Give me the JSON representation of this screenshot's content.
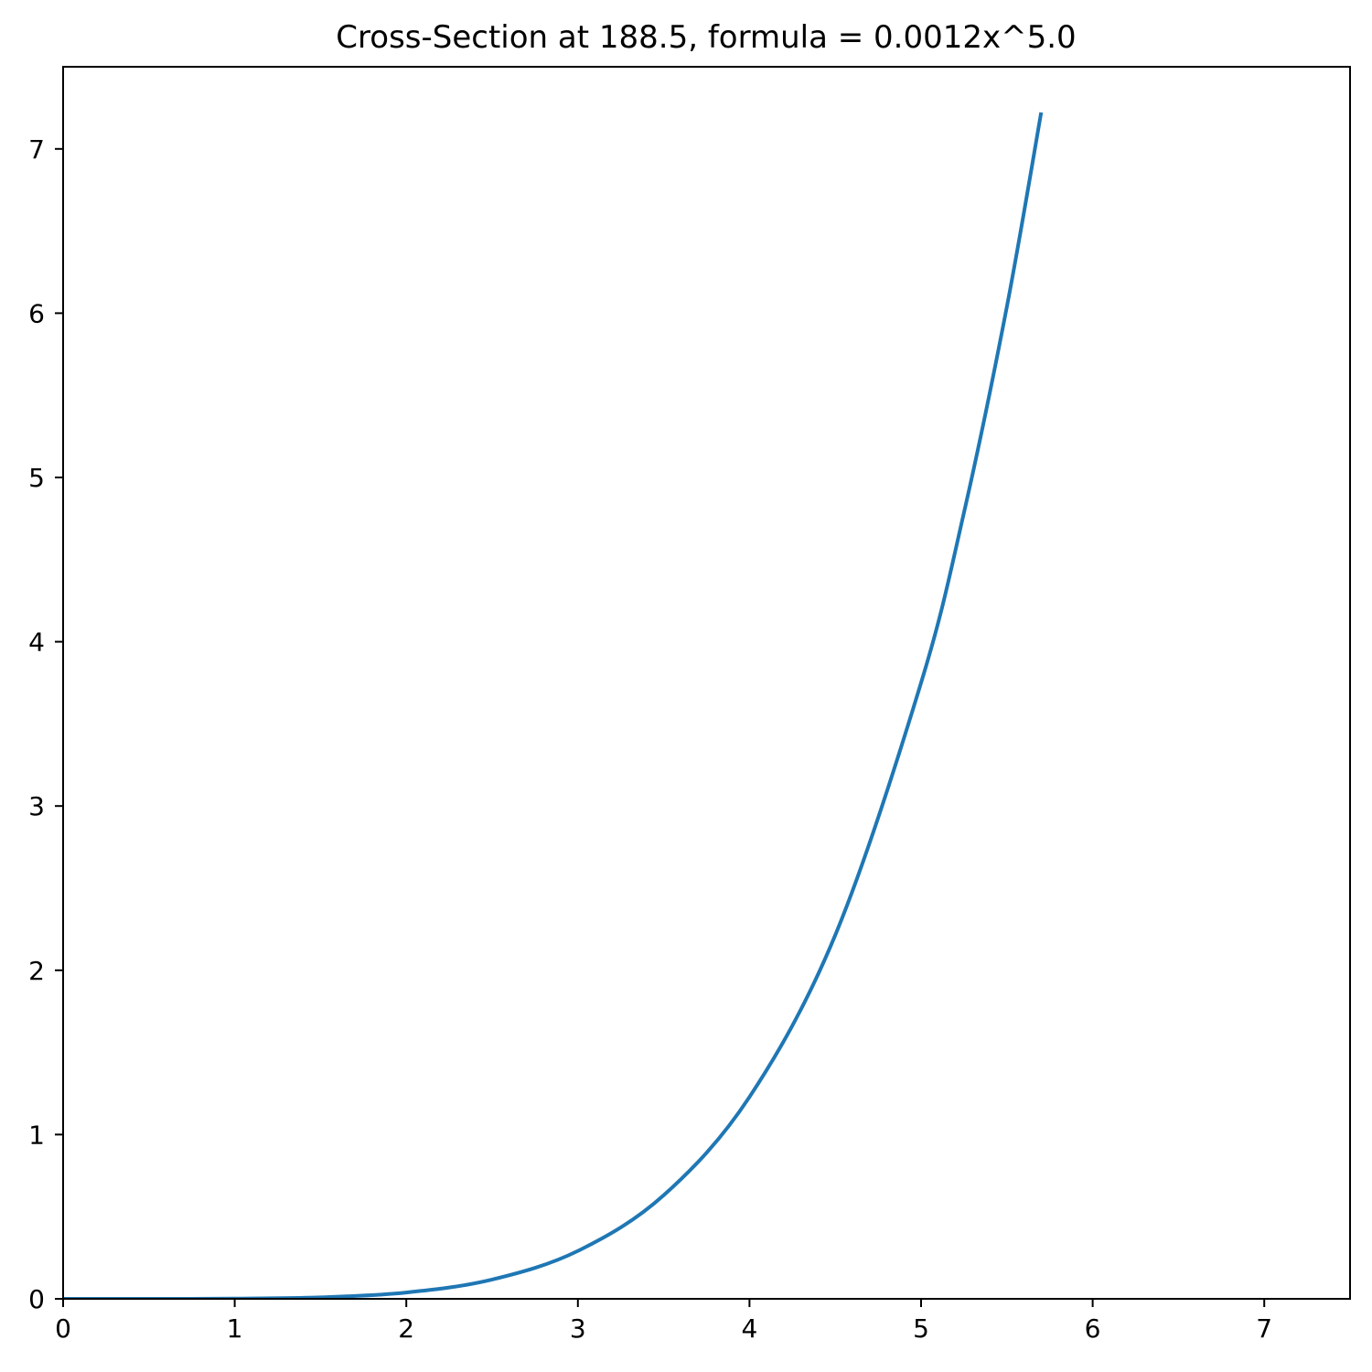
{
  "chart_data": {
    "type": "line",
    "title": "Cross-Section at 188.5, formula = 0.0012x^5.0",
    "xlabel": "",
    "ylabel": "",
    "xlim": [
      0,
      7.5
    ],
    "ylim": [
      0,
      7.5
    ],
    "x_ticks": [
      0,
      1,
      2,
      3,
      4,
      5,
      6,
      7
    ],
    "y_ticks": [
      0,
      1,
      2,
      3,
      4,
      5,
      6,
      7
    ],
    "x_tick_labels": [
      "0",
      "1",
      "2",
      "3",
      "4",
      "5",
      "6",
      "7"
    ],
    "y_tick_labels": [
      "0",
      "1",
      "2",
      "3",
      "4",
      "5",
      "6",
      "7"
    ],
    "grid": false,
    "series": [
      {
        "color": "#1f77b4",
        "x": [
          0,
          0.5,
          1,
          1.5,
          2,
          2.5,
          3,
          3.5,
          4,
          4.5,
          5,
          5.25,
          5.5,
          5.7
        ],
        "y": [
          0,
          3.75e-05,
          0.0012,
          0.0091,
          0.0384,
          0.1172,
          0.2916,
          0.6303,
          1.2288,
          2.2143,
          3.75,
          4.7859,
          6.0391,
          7.2219
        ]
      }
    ]
  }
}
